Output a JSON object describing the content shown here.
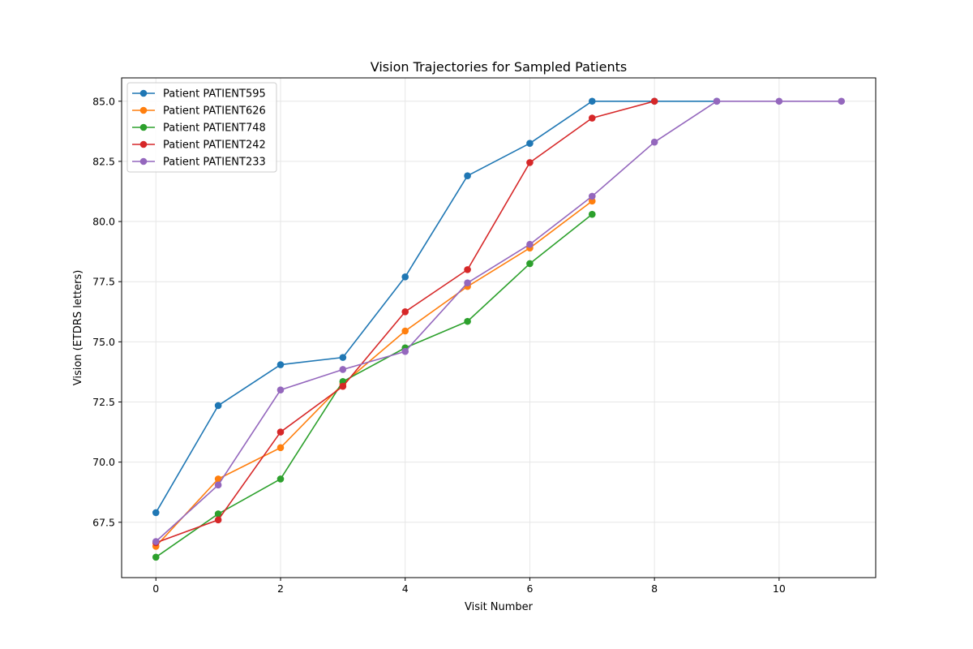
{
  "chart_data": {
    "type": "line",
    "title": "Vision Trajectories for Sampled Patients",
    "xlabel": "Visit Number",
    "ylabel": "Vision (ETDRS letters)",
    "xlim": [
      -0.55,
      11.55
    ],
    "ylim": [
      65.2,
      85.97
    ],
    "xticks": [
      0,
      2,
      4,
      6,
      8,
      10
    ],
    "yticks": [
      67.5,
      70.0,
      72.5,
      75.0,
      77.5,
      80.0,
      82.5,
      85.0
    ],
    "xtick_labels": [
      "0",
      "2",
      "4",
      "6",
      "8",
      "10"
    ],
    "ytick_labels": [
      "67.5",
      "70.0",
      "72.5",
      "75.0",
      "77.5",
      "80.0",
      "82.5",
      "85.0"
    ],
    "grid": true,
    "legend_position": "top-left",
    "series": [
      {
        "name": "Patient PATIENT595",
        "color": "#1f77b4",
        "x": [
          0,
          1,
          2,
          3,
          4,
          5,
          6,
          7,
          8,
          9
        ],
        "y": [
          67.9,
          72.35,
          74.05,
          74.35,
          77.7,
          81.9,
          83.25,
          85.0,
          85.0,
          85.0
        ]
      },
      {
        "name": "Patient PATIENT626",
        "color": "#ff7f0e",
        "x": [
          0,
          1,
          2,
          3,
          4,
          5,
          6,
          7
        ],
        "y": [
          66.5,
          69.3,
          70.6,
          73.25,
          75.45,
          77.3,
          78.9,
          80.85
        ]
      },
      {
        "name": "Patient PATIENT748",
        "color": "#2ca02c",
        "x": [
          0,
          1,
          2,
          3,
          4,
          5,
          6,
          7
        ],
        "y": [
          66.05,
          67.85,
          69.3,
          73.35,
          74.75,
          75.85,
          78.25,
          80.3
        ]
      },
      {
        "name": "Patient PATIENT242",
        "color": "#d62728",
        "x": [
          0,
          1,
          2,
          3,
          4,
          5,
          6,
          7,
          8
        ],
        "y": [
          66.65,
          67.6,
          71.25,
          73.15,
          76.25,
          78.0,
          82.45,
          84.3,
          85.0
        ]
      },
      {
        "name": "Patient PATIENT233",
        "color": "#9467bd",
        "x": [
          0,
          1,
          2,
          3,
          4,
          5,
          6,
          7,
          8,
          9,
          10,
          11
        ],
        "y": [
          66.7,
          69.05,
          73.0,
          73.85,
          74.6,
          77.45,
          79.05,
          81.05,
          83.3,
          85.0,
          85.0,
          85.0
        ]
      }
    ]
  }
}
